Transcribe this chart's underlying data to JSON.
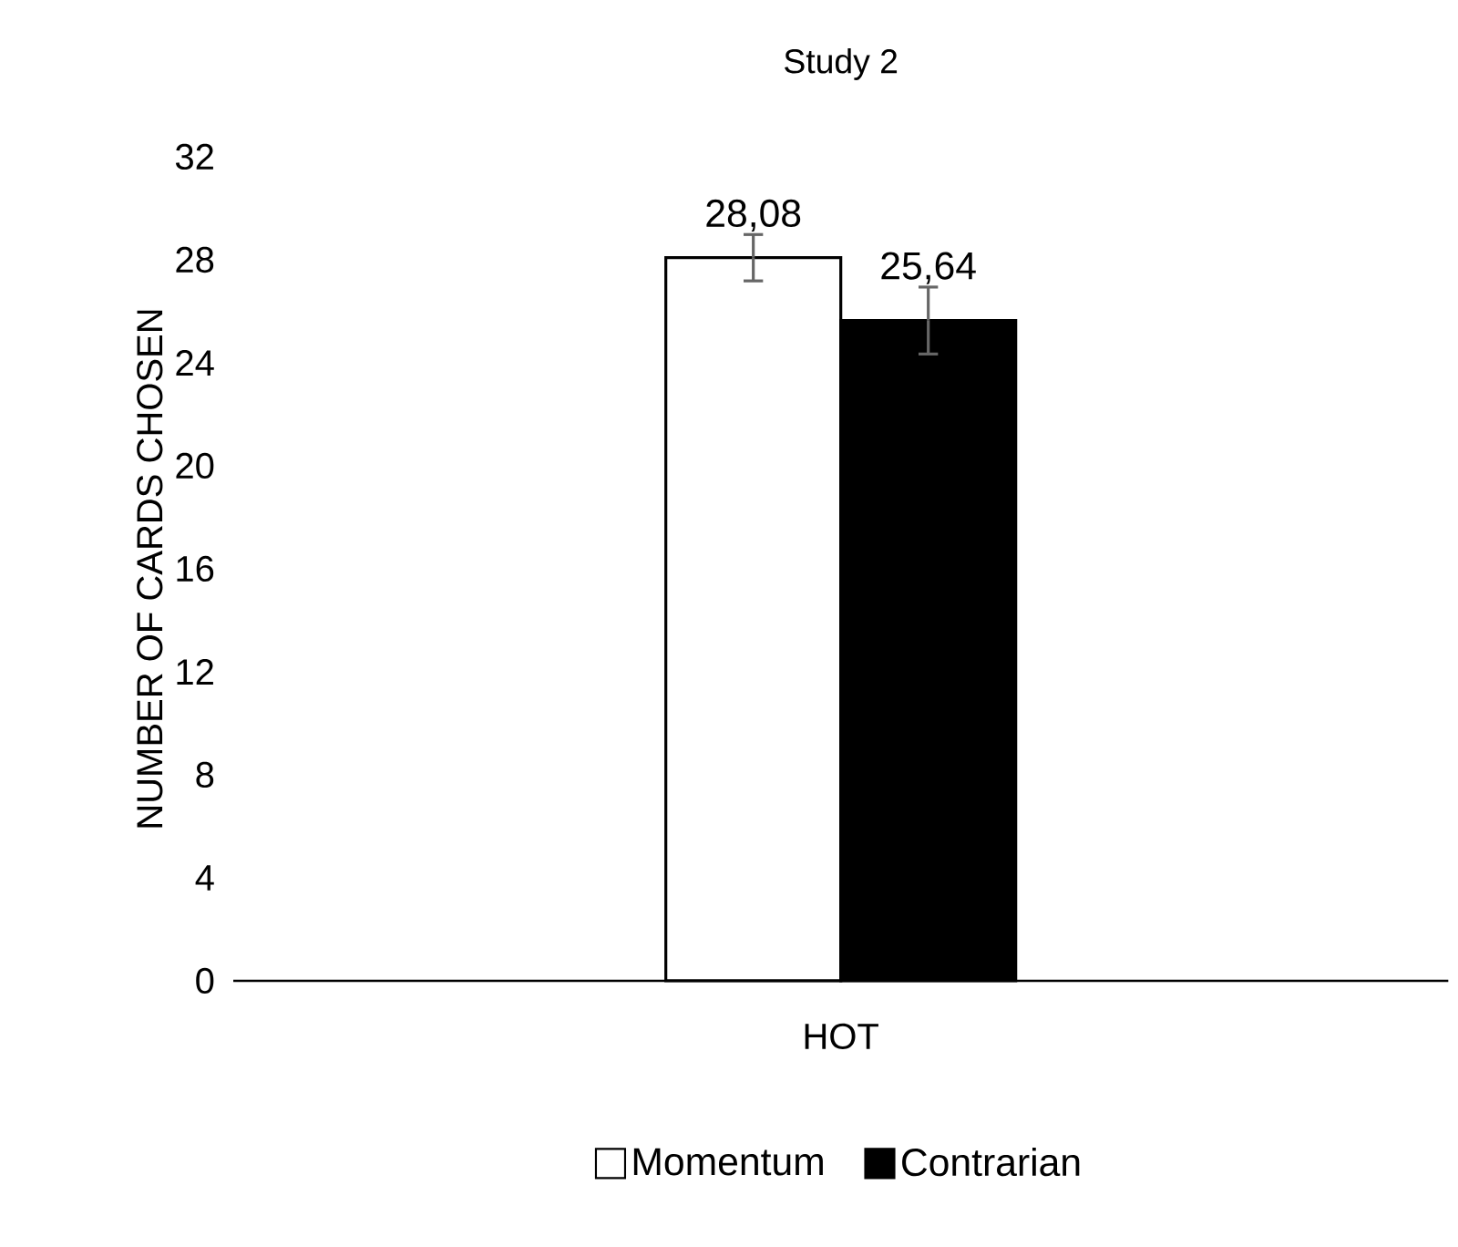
{
  "chart_data": {
    "type": "bar",
    "title": "Study 2",
    "ylabel": "NUMBER OF CARDS CHOSEN",
    "categories": [
      "HOT"
    ],
    "series": [
      {
        "name": "Momentum",
        "color": "#ffffff",
        "values": [
          28.08
        ],
        "errors": [
          0.9
        ],
        "value_labels": [
          "28,08"
        ]
      },
      {
        "name": "Contrarian",
        "color": "#000000",
        "values": [
          25.64
        ],
        "errors": [
          1.3
        ],
        "value_labels": [
          "25,64"
        ]
      }
    ],
    "ylim": [
      0,
      32
    ],
    "yticks": [
      0,
      4,
      8,
      12,
      16,
      20,
      24,
      28,
      32
    ],
    "legend": "bottom"
  }
}
